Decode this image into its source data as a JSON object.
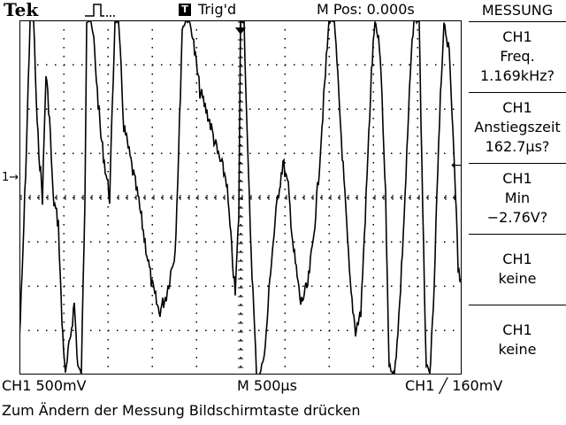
{
  "header": {
    "brand": "Tek",
    "trigger_box": "T",
    "trigger_status": "Trig'd",
    "position": "M Pos: 0.000s"
  },
  "scope": {
    "channel_marker": "1→",
    "trigger_level_marker": "←"
  },
  "menu": {
    "title": "MESSUNG",
    "items": [
      {
        "source": "CH1",
        "type": "Freq.",
        "value": "1.169kHz?"
      },
      {
        "source": "CH1",
        "type": "Anstiegszeit",
        "value": "162.7µs?"
      },
      {
        "source": "CH1",
        "type": "Min",
        "value": "−2.76V?"
      },
      {
        "source": "CH1",
        "type": "keine",
        "value": ""
      },
      {
        "source": "CH1",
        "type": "keine",
        "value": ""
      }
    ]
  },
  "status": {
    "ch1_scale": "CH1  500mV",
    "timebase": "M 500µs",
    "trigger": "CH1 ╱ 160mV"
  },
  "hint": "Zum Ändern der Messung Bildschirmtaste drücken",
  "colors": {
    "trace": "#000000",
    "grid": "#000000",
    "background": "#ffffff"
  }
}
